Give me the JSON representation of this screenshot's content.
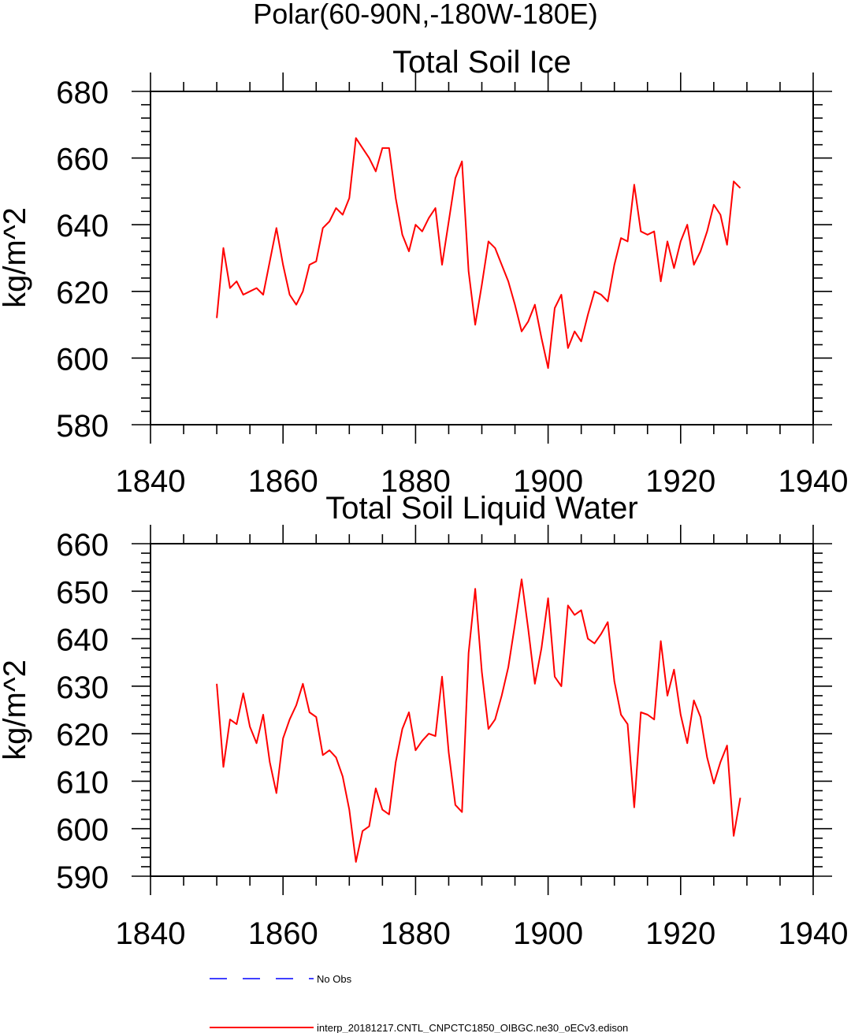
{
  "figure_title": "Polar(60-90N,-180W-180E)",
  "legend": {
    "items": [
      {
        "label": "No Obs",
        "color": "#0000ff",
        "style": "dashed"
      },
      {
        "label": "interp_20181217.CNTL_CNPCTC1850_OIBGC.ne30_oECv3.edison",
        "color": "#ff0000",
        "style": "solid"
      }
    ]
  },
  "chart_data": [
    {
      "type": "line",
      "title": "Total Soil Ice",
      "xlabel": "",
      "ylabel": "kg/m^2",
      "xlim": [
        1840,
        1940
      ],
      "ylim": [
        580,
        680
      ],
      "xticks": [
        1840,
        1860,
        1880,
        1900,
        1920,
        1940
      ],
      "yticks": [
        580,
        600,
        620,
        640,
        660,
        680
      ],
      "x_minor_step": 5,
      "y_minor_step": 4,
      "series": [
        {
          "name": "interp_20181217.CNTL_CNPCTC1850_OIBGC.ne30_oECv3.edison",
          "color": "#ff0000",
          "x": [
            1850,
            1851,
            1852,
            1853,
            1854,
            1855,
            1856,
            1857,
            1858,
            1859,
            1860,
            1861,
            1862,
            1863,
            1864,
            1865,
            1866,
            1867,
            1868,
            1869,
            1870,
            1871,
            1872,
            1873,
            1874,
            1875,
            1876,
            1877,
            1878,
            1879,
            1880,
            1881,
            1882,
            1883,
            1884,
            1885,
            1886,
            1887,
            1888,
            1889,
            1890,
            1891,
            1892,
            1893,
            1894,
            1895,
            1896,
            1897,
            1898,
            1899,
            1900,
            1901,
            1902,
            1903,
            1904,
            1905,
            1906,
            1907,
            1908,
            1909,
            1910,
            1911,
            1912,
            1913,
            1914,
            1915,
            1916,
            1917,
            1918,
            1919,
            1920,
            1921,
            1922,
            1923,
            1924,
            1925,
            1926,
            1927,
            1928,
            1929
          ],
          "values": [
            612,
            633,
            621,
            623,
            619,
            620,
            621,
            619,
            629,
            639,
            628,
            619,
            616,
            620,
            628,
            629,
            639,
            641,
            645,
            643,
            648,
            666,
            663,
            660,
            656,
            663,
            663,
            648,
            637,
            632,
            640,
            638,
            642,
            645,
            628,
            641,
            654,
            659,
            626,
            610,
            622,
            635,
            633,
            628,
            623,
            616,
            608,
            611,
            616,
            606,
            597,
            615,
            619,
            603,
            608,
            605,
            613,
            620,
            619,
            617,
            628,
            636,
            635,
            652,
            638,
            637,
            638,
            623,
            635,
            627,
            635,
            640,
            628,
            632,
            638,
            646,
            643,
            634,
            653,
            651
          ]
        }
      ]
    },
    {
      "type": "line",
      "title": "Total Soil Liquid Water",
      "xlabel": "",
      "ylabel": "kg/m^2",
      "xlim": [
        1840,
        1940
      ],
      "ylim": [
        590,
        660
      ],
      "xticks": [
        1840,
        1860,
        1880,
        1900,
        1920,
        1940
      ],
      "yticks": [
        590,
        600,
        610,
        620,
        630,
        640,
        650,
        660
      ],
      "x_minor_step": 5,
      "y_minor_step": 2,
      "series": [
        {
          "name": "interp_20181217.CNTL_CNPCTC1850_OIBGC.ne30_oECv3.edison",
          "color": "#ff0000",
          "x": [
            1850,
            1851,
            1852,
            1853,
            1854,
            1855,
            1856,
            1857,
            1858,
            1859,
            1860,
            1861,
            1862,
            1863,
            1864,
            1865,
            1866,
            1867,
            1868,
            1869,
            1870,
            1871,
            1872,
            1873,
            1874,
            1875,
            1876,
            1877,
            1878,
            1879,
            1880,
            1881,
            1882,
            1883,
            1884,
            1885,
            1886,
            1887,
            1888,
            1889,
            1890,
            1891,
            1892,
            1893,
            1894,
            1895,
            1896,
            1897,
            1898,
            1899,
            1900,
            1901,
            1902,
            1903,
            1904,
            1905,
            1906,
            1907,
            1908,
            1909,
            1910,
            1911,
            1912,
            1913,
            1914,
            1915,
            1916,
            1917,
            1918,
            1919,
            1920,
            1921,
            1922,
            1923,
            1924,
            1925,
            1926,
            1927,
            1928,
            1929
          ],
          "values": [
            630.5,
            613,
            623,
            622,
            628.5,
            621.5,
            618,
            624,
            614,
            607.5,
            619,
            623,
            626,
            630.5,
            624.5,
            623.5,
            615.5,
            616.5,
            615,
            611,
            604,
            593,
            599.5,
            600.5,
            608.5,
            604,
            603,
            614,
            621,
            624.5,
            616.5,
            618.5,
            620,
            619.5,
            632,
            616,
            605,
            603.5,
            637,
            650.5,
            633,
            621,
            623,
            628,
            634,
            643,
            652.5,
            642,
            630.5,
            638,
            648.5,
            632,
            630,
            647,
            645,
            646,
            640,
            639,
            641,
            643.5,
            631,
            624,
            622,
            604.5,
            624.5,
            624,
            623,
            639.5,
            628,
            633.5,
            624,
            618,
            627,
            623.5,
            615,
            609.5,
            614,
            617.5,
            598.5,
            606.5
          ]
        }
      ]
    }
  ]
}
